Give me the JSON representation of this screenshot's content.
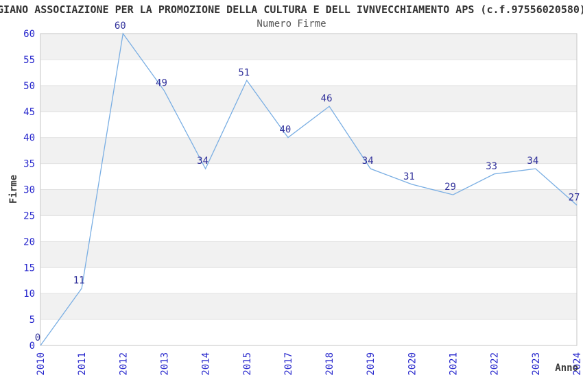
{
  "chart_data": {
    "type": "line",
    "title": "GIANO ASSOCIAZIONE PER LA PROMOZIONE DELLA CULTURA E DELL IVNVECCHIAMENTO APS (c.f.97556020580)",
    "subtitle": "Numero Firme",
    "xlabel": "Anno",
    "ylabel": "Firme",
    "categories": [
      "2010",
      "2011",
      "2012",
      "2013",
      "2014",
      "2015",
      "2017",
      "2018",
      "2019",
      "2020",
      "2021",
      "2022",
      "2023",
      "2024"
    ],
    "values": [
      0,
      11,
      60,
      49,
      34,
      51,
      40,
      46,
      34,
      31,
      29,
      33,
      34,
      27
    ],
    "ylim": [
      0,
      60
    ],
    "yticks": [
      0,
      5,
      10,
      15,
      20,
      25,
      30,
      35,
      40,
      45,
      50,
      55,
      60
    ],
    "grid": "horizontal-bands",
    "legend_position": "none",
    "data_labels_shown": true,
    "colors": {
      "line": "#79aee3",
      "tick_label": "#2525cc",
      "data_label": "#31319b",
      "band": "#f1f1f1",
      "gridline": "#e2e2e2",
      "border": "#c6c6c6",
      "title_text": "#333333",
      "subtitle_text": "#555555",
      "axis_title_text": "#3d3d3d",
      "background": "#ffffff"
    }
  }
}
